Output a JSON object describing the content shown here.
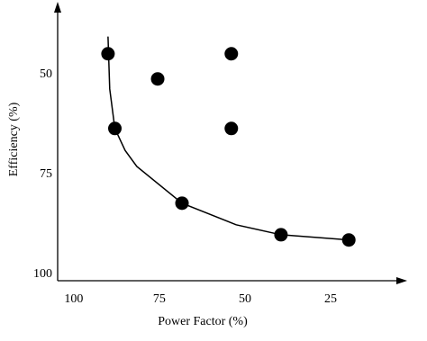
{
  "chart_data": {
    "type": "scatter",
    "x_label": "Power Factor (%)",
    "y_label": "Efficiency (%)",
    "xlim": [
      104.7,
      4.5
    ],
    "ylim": [
      33.6,
      101.6
    ],
    "xticks": [
      100,
      75,
      50,
      25
    ],
    "yticks": [
      50,
      75,
      100
    ],
    "grid": false,
    "series": [
      {
        "mode": "markers",
        "color": "#000000",
        "x": [
          90,
          75.5,
          54,
          88,
          54,
          68.4,
          39.5,
          19.7
        ],
        "values": [
          44.8,
          51.1,
          44.8,
          63.5,
          63.5,
          82.2,
          90.1,
          91.4
        ]
      },
      {
        "mode": "line",
        "color": "#000000",
        "x": [
          90,
          89.5,
          88,
          85,
          81.6,
          68.4,
          52.6,
          39.5,
          19.7
        ],
        "values": [
          40.5,
          53.6,
          63.5,
          69,
          73,
          82.2,
          87.6,
          90.1,
          91.4
        ]
      }
    ]
  }
}
